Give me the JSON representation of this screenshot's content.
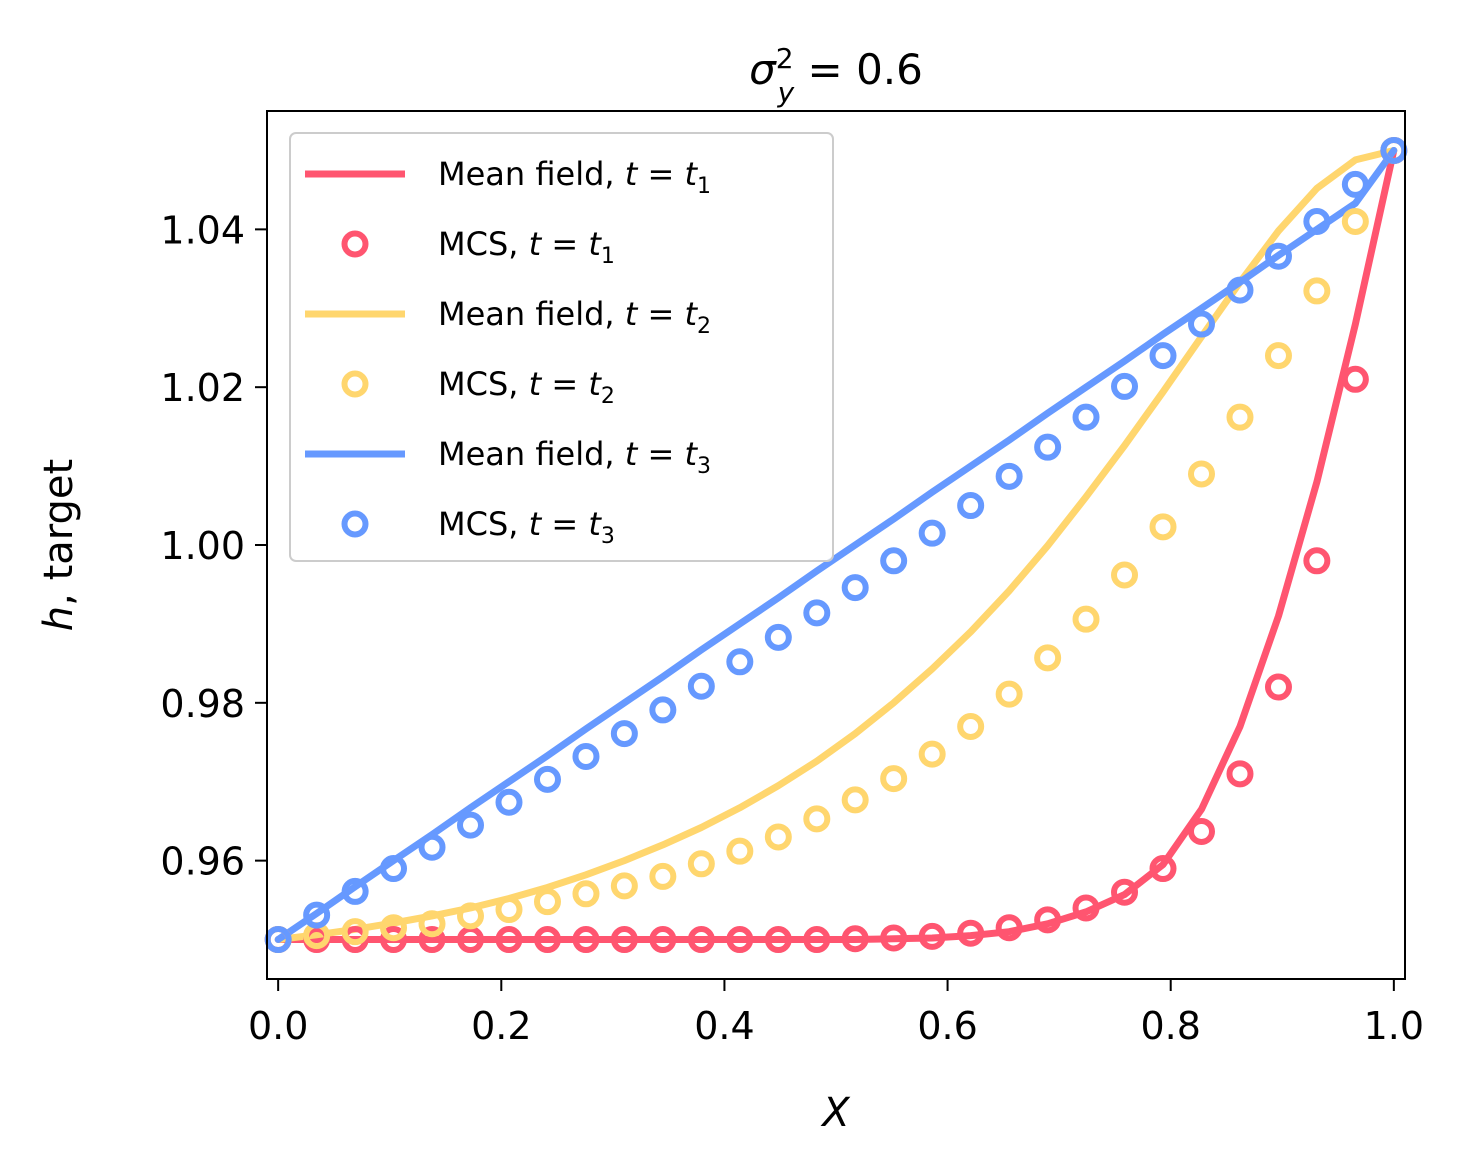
{
  "chart_data": {
    "type": "line",
    "title": {
      "symbol": "σ",
      "sub": "y",
      "sup": "2",
      "rest": " = 0.6"
    },
    "xlabel": "X",
    "ylabel": {
      "italic": "h",
      "rest": ", target"
    },
    "xlim": [
      -0.01,
      1.01
    ],
    "ylim": [
      0.945,
      1.055
    ],
    "x_ticks": [
      0.0,
      0.2,
      0.4,
      0.6,
      0.8,
      1.0
    ],
    "x_tick_labels": [
      "0.0",
      "0.2",
      "0.4",
      "0.6",
      "0.8",
      "1.0"
    ],
    "y_ticks": [
      0.96,
      0.98,
      1.0,
      1.02,
      1.04
    ],
    "y_tick_labels": [
      "0.96",
      "0.98",
      "1.00",
      "1.02",
      "1.04"
    ],
    "legend_position": "upper-left",
    "x": [
      0.0,
      0.0345,
      0.069,
      0.1034,
      0.1379,
      0.1724,
      0.2069,
      0.2414,
      0.2759,
      0.3103,
      0.3448,
      0.3793,
      0.4138,
      0.4483,
      0.4828,
      0.5172,
      0.5517,
      0.5862,
      0.6207,
      0.6552,
      0.6897,
      0.7241,
      0.7586,
      0.7931,
      0.8276,
      0.8621,
      0.8966,
      0.931,
      0.9655,
      1.0
    ],
    "series": [
      {
        "name": "Mean field, ",
        "t_sub": "1",
        "kind": "line",
        "color": "#ff5570",
        "values": [
          0.95,
          0.95,
          0.95,
          0.95,
          0.95,
          0.95,
          0.95,
          0.95,
          0.95,
          0.95,
          0.95,
          0.95,
          0.95,
          0.95,
          0.95,
          0.95,
          0.9501,
          0.9502,
          0.9505,
          0.951,
          0.952,
          0.9535,
          0.9557,
          0.9595,
          0.9665,
          0.977,
          0.991,
          1.008,
          1.028,
          1.05
        ]
      },
      {
        "name": "MCS, ",
        "t_sub": "1",
        "kind": "markers",
        "color": "#ff5570",
        "values": [
          0.95,
          0.95,
          0.95,
          0.95,
          0.95,
          0.95,
          0.95,
          0.95,
          0.95,
          0.95,
          0.95,
          0.95,
          0.95,
          0.95,
          0.95,
          0.9501,
          0.9502,
          0.9504,
          0.9508,
          0.9515,
          0.9525,
          0.954,
          0.956,
          0.959,
          0.9637,
          0.971,
          0.982,
          0.998,
          1.021,
          1.05
        ]
      },
      {
        "name": "Mean field, ",
        "t_sub": "2",
        "kind": "line",
        "color": "#ffd66e",
        "values": [
          0.95,
          0.9506,
          0.9513,
          0.9521,
          0.953,
          0.954,
          0.9552,
          0.9566,
          0.9582,
          0.96,
          0.962,
          0.9642,
          0.9667,
          0.9695,
          0.9726,
          0.9761,
          0.98,
          0.9843,
          0.989,
          0.9942,
          0.9999,
          1.0061,
          1.0126,
          1.0194,
          1.0264,
          1.0333,
          1.0398,
          1.0452,
          1.0488,
          1.05
        ]
      },
      {
        "name": "MCS, ",
        "t_sub": "2",
        "kind": "markers",
        "color": "#ffd66e",
        "values": [
          0.95,
          0.9505,
          0.951,
          0.9515,
          0.952,
          0.953,
          0.9538,
          0.9548,
          0.9558,
          0.9568,
          0.958,
          0.9596,
          0.9612,
          0.963,
          0.9653,
          0.9677,
          0.9704,
          0.9735,
          0.977,
          0.9811,
          0.9857,
          0.9906,
          0.9962,
          1.0023,
          1.009,
          1.0162,
          1.024,
          1.0322,
          1.041,
          1.05
        ]
      },
      {
        "name": "Mean field, ",
        "t_sub": "3",
        "kind": "line",
        "color": "#6699ff",
        "values": [
          0.95,
          0.9533,
          0.9567,
          0.96,
          0.9633,
          0.9667,
          0.97,
          0.9733,
          0.9767,
          0.98,
          0.9833,
          0.9867,
          0.99,
          0.9933,
          0.9967,
          1.0,
          1.0033,
          1.0067,
          1.01,
          1.0133,
          1.0167,
          1.02,
          1.0233,
          1.0267,
          1.03,
          1.0333,
          1.0367,
          1.04,
          1.0433,
          1.05
        ]
      },
      {
        "name": "MCS, ",
        "t_sub": "3",
        "kind": "markers",
        "color": "#6699ff",
        "values": [
          0.95,
          0.9531,
          0.9561,
          0.959,
          0.9617,
          0.9645,
          0.9674,
          0.9703,
          0.9732,
          0.9761,
          0.9791,
          0.9821,
          0.9852,
          0.9883,
          0.9914,
          0.9946,
          0.998,
          1.0015,
          1.005,
          1.0087,
          1.0124,
          1.0162,
          1.0201,
          1.024,
          1.028,
          1.0323,
          1.0366,
          1.041,
          1.0457,
          1.05
        ]
      }
    ]
  }
}
